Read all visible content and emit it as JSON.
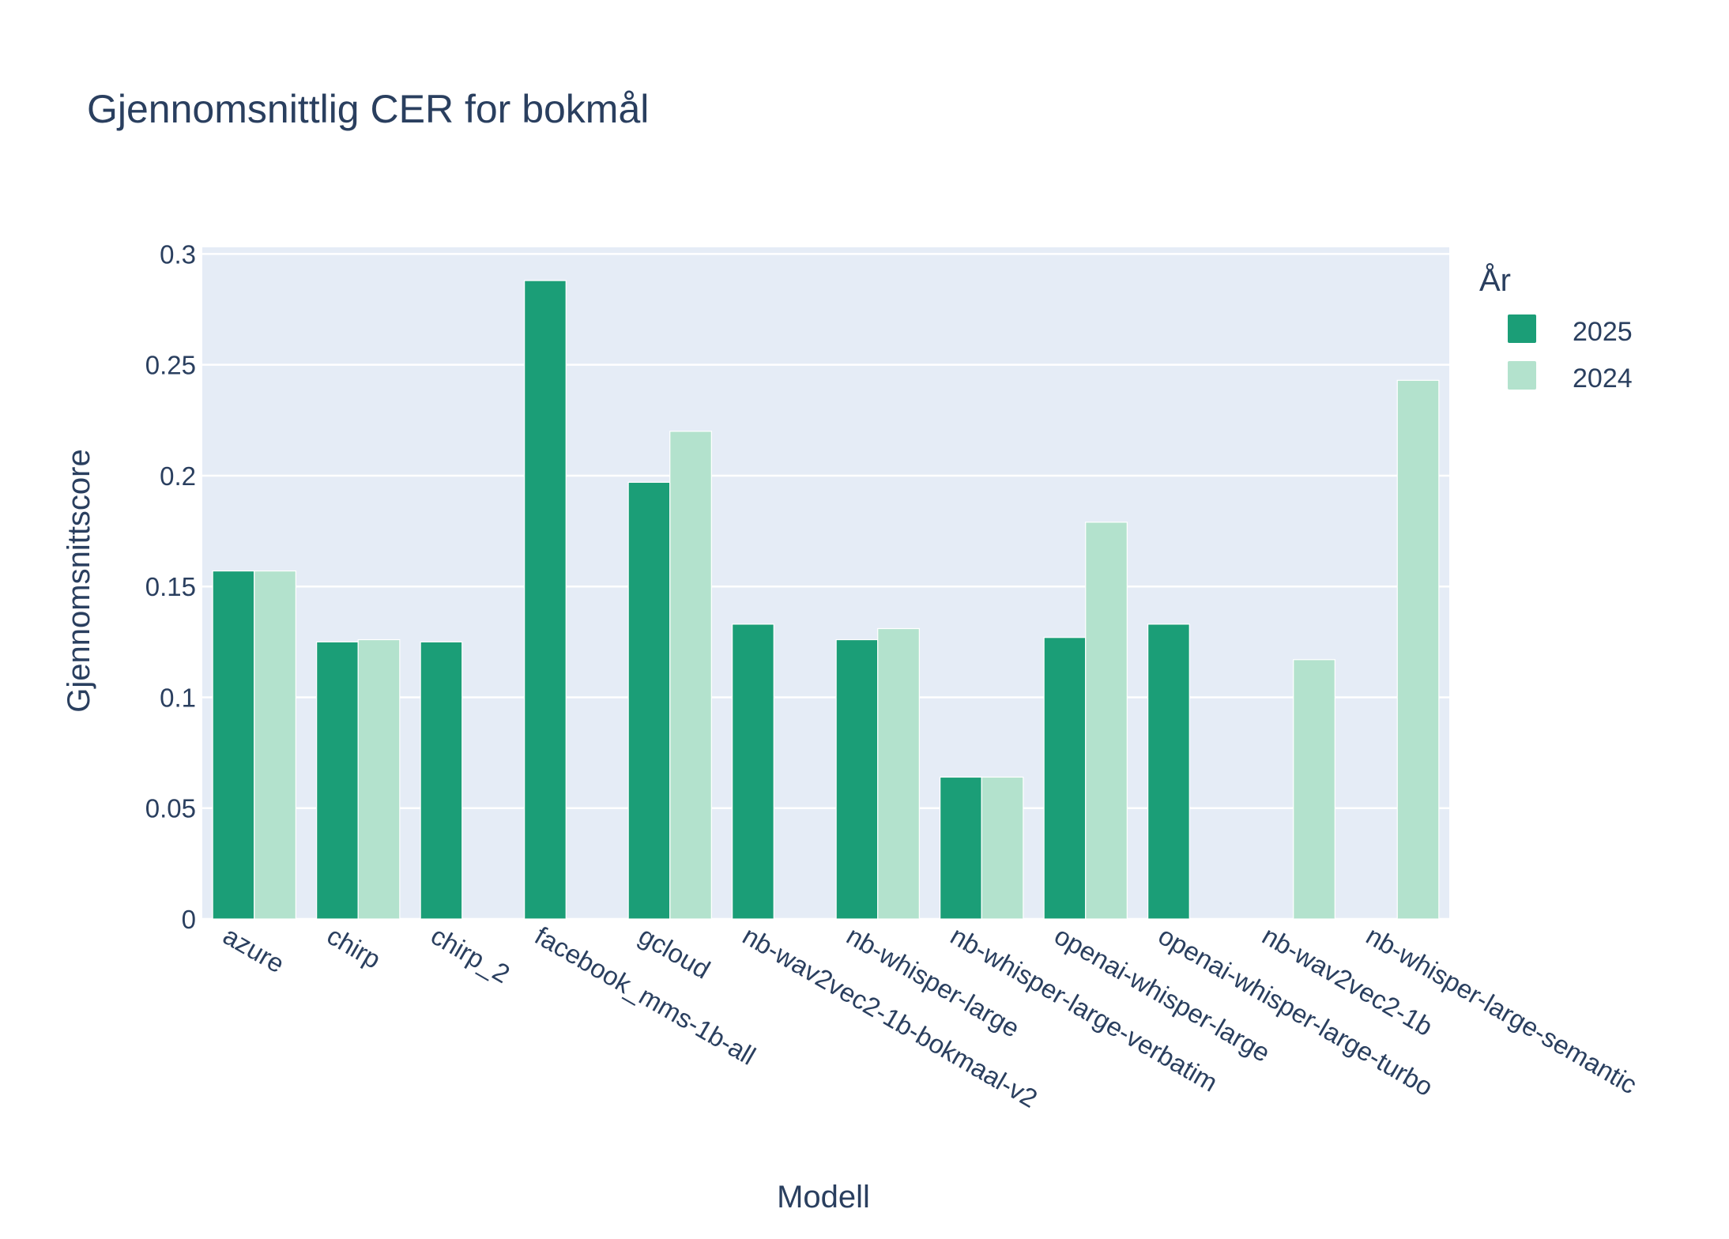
{
  "chart_data": {
    "type": "bar",
    "title": "Gjennomsnittlig CER for bokmål",
    "xlabel": "Modell",
    "ylabel": "Gjennomsnittscore",
    "ylim": [
      0,
      0.303
    ],
    "yticks": [
      0,
      0.05,
      0.1,
      0.15,
      0.2,
      0.25,
      0.3
    ],
    "ytick_labels": [
      "0",
      "0.05",
      "0.1",
      "0.15",
      "0.2",
      "0.25",
      "0.3"
    ],
    "grid": true,
    "legend": {
      "title": "År",
      "position": "top-right"
    },
    "categories": [
      "azure",
      "chirp",
      "chirp_2",
      "facebook_mms-1b-all",
      "gcloud",
      "nb-wav2vec2-1b-bokmaal-v2",
      "nb-whisper-large",
      "nb-whisper-large-verbatim",
      "openai-whisper-large",
      "openai-whisper-large-turbo",
      "nb-wav2vec2-1b",
      "nb-whisper-large-semantic"
    ],
    "series": [
      {
        "name": "2025",
        "color": "#1b9e77",
        "values": [
          0.157,
          0.125,
          0.125,
          0.288,
          0.197,
          0.133,
          0.126,
          0.064,
          0.127,
          0.133,
          null,
          null
        ]
      },
      {
        "name": "2024",
        "color": "#b3e2cd",
        "values": [
          0.157,
          0.126,
          null,
          null,
          0.22,
          null,
          0.131,
          0.064,
          0.179,
          null,
          0.117,
          0.243
        ]
      }
    ],
    "colors": {
      "plot_background": "#e5ecf6",
      "grid": "#ffffff",
      "text": "#2a3f5f"
    }
  }
}
